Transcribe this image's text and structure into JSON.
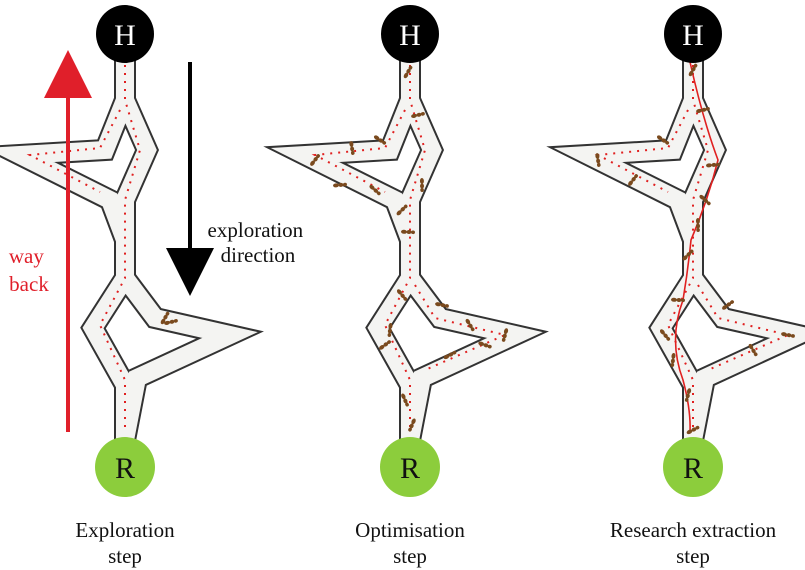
{
  "nodes": {
    "home": "H",
    "resource": "R"
  },
  "panels": [
    {
      "id": "exploration",
      "caption_lines": [
        "Exploration",
        "step"
      ]
    },
    {
      "id": "optimisation",
      "caption_lines": [
        "Optimisation",
        "step"
      ]
    },
    {
      "id": "extraction",
      "caption_lines": [
        "Research extraction",
        "step"
      ]
    }
  ],
  "annotations": {
    "exploration_direction": [
      "exploration",
      "direction"
    ],
    "way_back": [
      "way",
      "back"
    ]
  },
  "colors": {
    "home_node": "#000000",
    "resource_node": "#8ccd3c",
    "path_fill": "#f4f4f2",
    "path_outline": "#333333",
    "trail_red": "#e02020",
    "ant_brown": "#7a4a1e",
    "way_back_arrow": "#e01f2a",
    "exploration_arrow": "#000000"
  },
  "icons": [
    "home-node-circle",
    "resource-node-circle",
    "ant-icon",
    "pheromone-trail",
    "direction-arrow"
  ]
}
